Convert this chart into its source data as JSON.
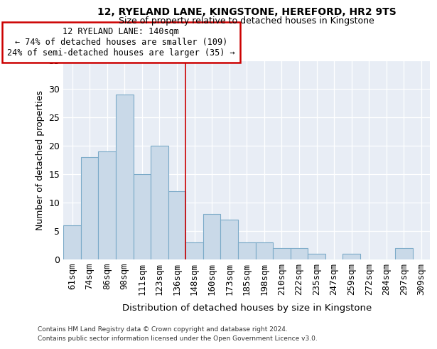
{
  "title1": "12, RYELAND LANE, KINGSTONE, HEREFORD, HR2 9TS",
  "title2": "Size of property relative to detached houses in Kingstone",
  "xlabel": "Distribution of detached houses by size in Kingstone",
  "ylabel": "Number of detached properties",
  "categories": [
    "61sqm",
    "74sqm",
    "86sqm",
    "98sqm",
    "111sqm",
    "123sqm",
    "136sqm",
    "148sqm",
    "160sqm",
    "173sqm",
    "185sqm",
    "198sqm",
    "210sqm",
    "222sqm",
    "235sqm",
    "247sqm",
    "259sqm",
    "272sqm",
    "284sqm",
    "297sqm",
    "309sqm"
  ],
  "values": [
    6,
    18,
    19,
    29,
    15,
    20,
    12,
    3,
    8,
    7,
    3,
    3,
    2,
    2,
    1,
    0,
    1,
    0,
    0,
    2,
    0
  ],
  "bar_color": "#c9d9e8",
  "bar_edge_color": "#7baac8",
  "vline_x": 6.5,
  "vline_color": "#cc0000",
  "annotation_text": "12 RYELAND LANE: 140sqm\n← 74% of detached houses are smaller (109)\n24% of semi-detached houses are larger (35) →",
  "annotation_box_color": "white",
  "annotation_border_color": "#cc0000",
  "ylim": [
    0,
    35
  ],
  "yticks": [
    0,
    5,
    10,
    15,
    20,
    25,
    30,
    35
  ],
  "bg_color": "#e8edf5",
  "grid_color": "white",
  "footnote1": "Contains HM Land Registry data © Crown copyright and database right 2024.",
  "footnote2": "Contains public sector information licensed under the Open Government Licence v3.0."
}
